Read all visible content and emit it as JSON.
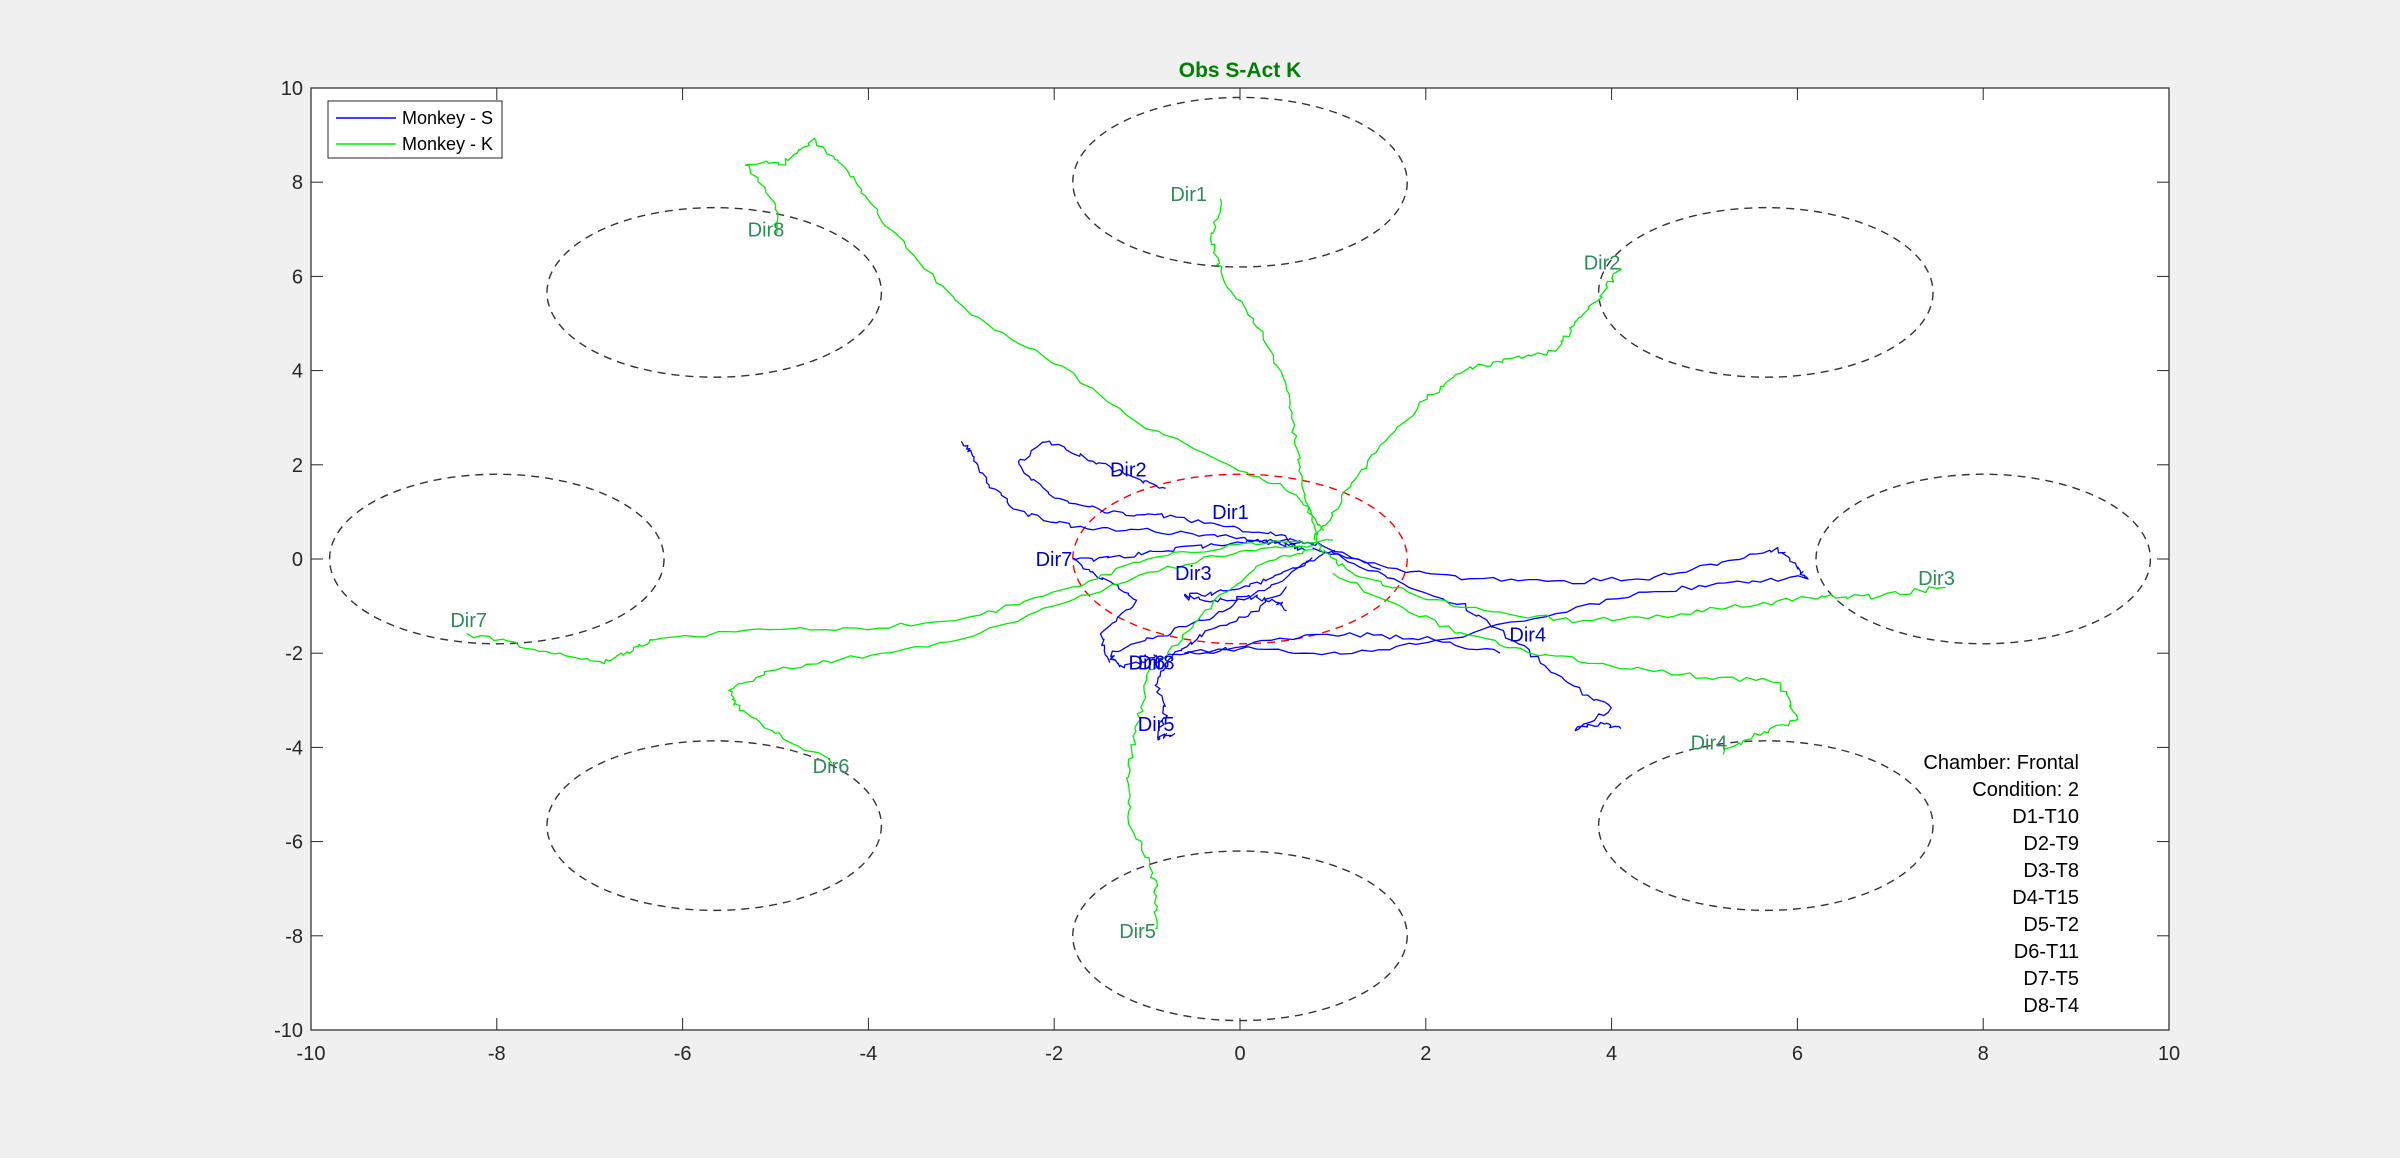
{
  "chart_data": {
    "type": "line",
    "title": "Obs S-Act K",
    "title_color": "#008000",
    "xlim": [
      -10,
      10
    ],
    "ylim": [
      -10,
      10
    ],
    "xticks": [
      "-10",
      "-8",
      "-6",
      "-4",
      "-2",
      "0",
      "2",
      "4",
      "6",
      "8",
      "10"
    ],
    "yticks": [
      "10",
      "8",
      "6",
      "4",
      "2",
      "0",
      "-2",
      "-4",
      "-6",
      "-8",
      "-10"
    ],
    "legend": {
      "placement": "top-left",
      "entries": [
        "Monkey - S",
        "Monkey - K"
      ]
    },
    "series": [
      {
        "name": "Monkey - S",
        "color": "#0000ff",
        "label_color": "#0000cd",
        "trajectories": [
          {
            "label": "Dir1",
            "label_at": [
              -0.3,
              1.0
            ],
            "points": [
              [
                0.7,
                0.2
              ],
              [
                0.5,
                0.3
              ],
              [
                0.2,
                0.4
              ],
              [
                -0.3,
                0.5
              ],
              [
                -1.0,
                0.6
              ],
              [
                -1.8,
                0.7
              ],
              [
                -2.4,
                1.0
              ],
              [
                -2.7,
                1.6
              ],
              [
                -2.9,
                2.3
              ],
              [
                -3.0,
                2.5
              ]
            ]
          },
          {
            "label": "Dir2",
            "label_at": [
              -1.4,
              1.9
            ],
            "points": [
              [
                0.8,
                0.3
              ],
              [
                0.4,
                0.5
              ],
              [
                -0.2,
                0.7
              ],
              [
                -0.8,
                0.9
              ],
              [
                -1.4,
                1.0
              ],
              [
                -2.0,
                1.3
              ],
              [
                -2.4,
                2.0
              ],
              [
                -2.1,
                2.5
              ],
              [
                -1.6,
                2.1
              ],
              [
                -1.1,
                1.7
              ],
              [
                -0.8,
                1.5
              ]
            ]
          },
          {
            "label": "Dir3",
            "label_at": [
              -0.7,
              -0.3
            ],
            "points": [
              [
                1.0,
                0.2
              ],
              [
                0.6,
                -0.2
              ],
              [
                0.2,
                -0.5
              ],
              [
                -0.2,
                -0.7
              ],
              [
                -0.6,
                -0.8
              ],
              [
                -0.3,
                -0.9
              ],
              [
                0.1,
                -0.8
              ],
              [
                0.4,
                -0.9
              ],
              [
                0.5,
                -1.1
              ]
            ]
          },
          {
            "label": "Dir4",
            "label_at": [
              2.9,
              -1.6
            ],
            "points": [
              [
                1.0,
                0.1
              ],
              [
                1.6,
                -0.4
              ],
              [
                2.4,
                -1.0
              ],
              [
                3.0,
                -1.8
              ],
              [
                3.5,
                -2.6
              ],
              [
                4.0,
                -3.2
              ],
              [
                3.6,
                -3.6
              ],
              [
                3.9,
                -3.5
              ],
              [
                4.1,
                -3.6
              ]
            ]
          },
          {
            "label": "Dir5",
            "label_at": [
              -1.1,
              -3.5
            ],
            "points": [
              [
                0.5,
                -0.6
              ],
              [
                0.1,
                -1.2
              ],
              [
                -0.4,
                -1.6
              ],
              [
                -0.7,
                -2.0
              ],
              [
                -0.9,
                -2.6
              ],
              [
                -0.8,
                -3.3
              ],
              [
                -0.9,
                -3.8
              ],
              [
                -0.7,
                -3.7
              ]
            ]
          },
          {
            "label": "Dir6",
            "label_at": [
              -1.2,
              -2.2
            ],
            "points": [
              [
                0.8,
                0.0
              ],
              [
                0.3,
                -0.6
              ],
              [
                -0.3,
                -1.2
              ],
              [
                -0.8,
                -1.6
              ],
              [
                -1.4,
                -2.0
              ],
              [
                -1.3,
                -2.3
              ],
              [
                -0.9,
                -2.1
              ],
              [
                -0.5,
                -2.0
              ],
              [
                0.4,
                -1.7
              ],
              [
                1.2,
                -1.6
              ],
              [
                2.0,
                -1.7
              ],
              [
                2.8,
                -2.0
              ]
            ]
          },
          {
            "label": "Dir7",
            "label_at": [
              -2.2,
              0.0
            ],
            "points": [
              [
                1.5,
                -0.2
              ],
              [
                0.9,
                0.3
              ],
              [
                0.4,
                0.4
              ],
              [
                -0.2,
                0.3
              ],
              [
                -0.8,
                0.2
              ],
              [
                -1.4,
                0.0
              ],
              [
                -1.8,
                0.0
              ],
              [
                -1.5,
                -0.4
              ],
              [
                -1.1,
                -0.9
              ],
              [
                -1.5,
                -1.6
              ],
              [
                -1.4,
                -2.2
              ]
            ]
          },
          {
            "label": "Dir8",
            "label_at": [
              -1.1,
              -2.2
            ],
            "points": [
              [
                0.8,
                0.2
              ],
              [
                1.6,
                -0.2
              ],
              [
                2.4,
                -0.4
              ],
              [
                3.4,
                -0.5
              ],
              [
                4.4,
                -0.4
              ],
              [
                5.2,
                -0.1
              ],
              [
                5.8,
                0.2
              ],
              [
                6.0,
                -0.2
              ],
              [
                6.1,
                -0.4
              ],
              [
                5.3,
                -0.5
              ],
              [
                4.4,
                -0.7
              ],
              [
                3.3,
                -1.2
              ],
              [
                2.0,
                -1.8
              ],
              [
                1.0,
                -2.0
              ],
              [
                0.0,
                -1.9
              ],
              [
                -0.6,
                -2.0
              ]
            ]
          }
        ]
      },
      {
        "name": "Monkey - K",
        "color": "#00ee00",
        "label_color": "#2e8b57",
        "trajectories": [
          {
            "label": "Dir1",
            "label_at": [
              -0.75,
              7.75
            ],
            "points": [
              [
                -0.2,
                7.6
              ],
              [
                -0.3,
                6.8
              ],
              [
                -0.2,
                6.0
              ],
              [
                0.2,
                4.9
              ],
              [
                0.5,
                3.7
              ],
              [
                0.6,
                2.5
              ],
              [
                0.7,
                1.4
              ],
              [
                0.8,
                0.6
              ],
              [
                0.9,
                0.1
              ]
            ]
          },
          {
            "label": "Dir2",
            "label_at": [
              3.7,
              6.3
            ],
            "points": [
              [
                4.1,
                6.2
              ],
              [
                3.9,
                5.6
              ],
              [
                3.6,
                5.0
              ],
              [
                3.4,
                4.4
              ],
              [
                2.8,
                4.2
              ],
              [
                2.4,
                4.0
              ],
              [
                2.0,
                3.4
              ],
              [
                1.5,
                2.4
              ],
              [
                1.1,
                1.3
              ],
              [
                0.8,
                0.4
              ]
            ]
          },
          {
            "label": "Dir3",
            "label_at": [
              7.3,
              -0.4
            ],
            "points": [
              [
                7.6,
                -0.6
              ],
              [
                6.8,
                -0.8
              ],
              [
                6.2,
                -0.8
              ],
              [
                5.4,
                -1.0
              ],
              [
                4.6,
                -1.2
              ],
              [
                3.6,
                -1.3
              ],
              [
                2.6,
                -1.1
              ],
              [
                1.8,
                -0.7
              ],
              [
                1.2,
                -0.3
              ],
              [
                0.9,
                0.2
              ]
            ]
          },
          {
            "label": "Dir4",
            "label_at": [
              4.85,
              -3.9
            ],
            "points": [
              [
                5.2,
                -4.1
              ],
              [
                5.6,
                -3.7
              ],
              [
                6.0,
                -3.4
              ],
              [
                5.8,
                -2.6
              ],
              [
                5.0,
                -2.5
              ],
              [
                4.1,
                -2.3
              ],
              [
                3.2,
                -2.0
              ],
              [
                2.4,
                -1.6
              ],
              [
                1.6,
                -0.9
              ],
              [
                1.0,
                -0.3
              ]
            ]
          },
          {
            "label": "Dir5",
            "label_at": [
              -1.3,
              -7.9
            ],
            "points": [
              [
                -0.9,
                -7.9
              ],
              [
                -0.9,
                -7.0
              ],
              [
                -1.0,
                -6.3
              ],
              [
                -1.2,
                -5.5
              ],
              [
                -1.2,
                -4.5
              ],
              [
                -1.1,
                -3.5
              ],
              [
                -1.0,
                -2.5
              ],
              [
                -0.6,
                -1.6
              ],
              [
                -0.2,
                -0.8
              ],
              [
                0.3,
                0.0
              ],
              [
                0.8,
                0.2
              ]
            ]
          },
          {
            "label": "Dir6",
            "label_at": [
              -4.6,
              -4.4
            ],
            "points": [
              [
                -4.4,
                -4.3
              ],
              [
                -4.9,
                -3.8
              ],
              [
                -5.4,
                -3.2
              ],
              [
                -5.5,
                -2.8
              ],
              [
                -5.1,
                -2.4
              ],
              [
                -4.2,
                -2.1
              ],
              [
                -3.0,
                -1.7
              ],
              [
                -2.0,
                -1.0
              ],
              [
                -1.0,
                -0.3
              ],
              [
                0.0,
                0.2
              ],
              [
                0.8,
                0.3
              ]
            ]
          },
          {
            "label": "Dir7",
            "label_at": [
              -8.5,
              -1.3
            ],
            "points": [
              [
                -8.3,
                -1.6
              ],
              [
                -7.6,
                -1.9
              ],
              [
                -6.9,
                -2.2
              ],
              [
                -6.6,
                -2.0
              ],
              [
                -6.3,
                -1.7
              ],
              [
                -5.2,
                -1.5
              ],
              [
                -4.0,
                -1.5
              ],
              [
                -2.8,
                -1.2
              ],
              [
                -1.8,
                -0.6
              ],
              [
                -1.0,
                0.0
              ],
              [
                0.0,
                0.3
              ],
              [
                1.0,
                0.4
              ]
            ]
          },
          {
            "label": "Dir8",
            "label_at": [
              -5.3,
              7.0
            ],
            "points": [
              [
                -5.0,
                6.9
              ],
              [
                -5.0,
                7.5
              ],
              [
                -5.3,
                8.4
              ],
              [
                -4.9,
                8.4
              ],
              [
                -4.6,
                8.9
              ],
              [
                -4.3,
                8.4
              ],
              [
                -4.0,
                7.6
              ],
              [
                -3.6,
                6.6
              ],
              [
                -2.9,
                5.2
              ],
              [
                -2.0,
                4.2
              ],
              [
                -1.0,
                2.8
              ],
              [
                0.0,
                1.9
              ],
              [
                0.6,
                1.4
              ],
              [
                0.9,
                0.6
              ]
            ]
          }
        ]
      }
    ],
    "target_circles": [
      {
        "center": [
          0,
          8
        ],
        "rx": 1.8,
        "ry": 1.8
      },
      {
        "center": [
          5.66,
          5.66
        ],
        "rx": 1.8,
        "ry": 1.8
      },
      {
        "center": [
          8,
          0
        ],
        "rx": 1.8,
        "ry": 1.8
      },
      {
        "center": [
          5.66,
          -5.66
        ],
        "rx": 1.8,
        "ry": 1.8
      },
      {
        "center": [
          0,
          -8
        ],
        "rx": 1.8,
        "ry": 1.8
      },
      {
        "center": [
          -5.66,
          -5.66
        ],
        "rx": 1.8,
        "ry": 1.8
      },
      {
        "center": [
          -8,
          0
        ],
        "rx": 1.8,
        "ry": 1.8
      },
      {
        "center": [
          -5.66,
          5.66
        ],
        "rx": 1.8,
        "ry": 1.8
      }
    ],
    "center_circle": {
      "center": [
        0,
        0
      ],
      "rx": 1.8,
      "ry": 1.8,
      "color": "#ff0000"
    },
    "info_text": [
      "Chamber: Frontal",
      "Condition: 2",
      "D1-T10",
      "D2-T9",
      "D3-T8",
      "D4-T15",
      "D5-T2",
      "D6-T11",
      "D7-T5",
      "D8-T4"
    ]
  }
}
